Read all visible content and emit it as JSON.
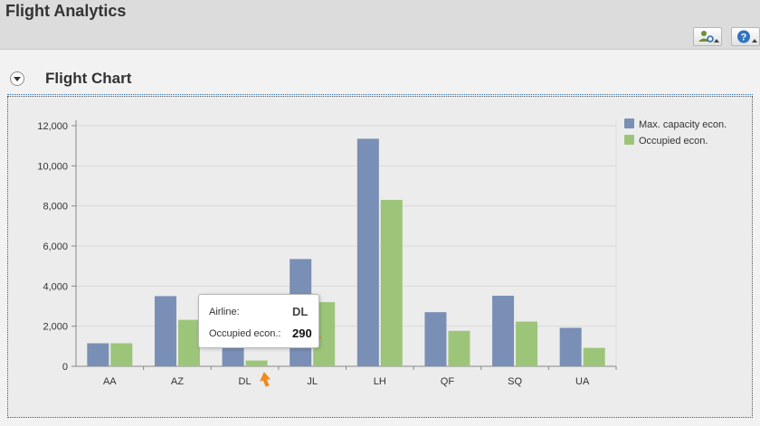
{
  "app": {
    "title": "Flight Analytics"
  },
  "toolbar": {
    "buttons": [
      {
        "icon": "user-settings-icon"
      },
      {
        "icon": "help-icon",
        "glyph": "?"
      }
    ]
  },
  "panel": {
    "title": "Flight Chart"
  },
  "colors": {
    "max_capacity": "#7a8fb5",
    "occupied": "#9dc57a",
    "axis": "#888888",
    "grid": "#d9d9d9"
  },
  "chart_data": {
    "type": "bar",
    "categories": [
      "AA",
      "AZ",
      "DL",
      "JL",
      "LH",
      "QF",
      "SQ",
      "UA"
    ],
    "series": [
      {
        "name": "Max. capacity econ.",
        "values": [
          1150,
          3500,
          1300,
          5350,
          11350,
          2700,
          3520,
          1920
        ]
      },
      {
        "name": "Occupied econ.",
        "values": [
          1150,
          2320,
          290,
          3200,
          8300,
          1770,
          2230,
          920
        ]
      }
    ],
    "ylim": [
      0,
      12000
    ],
    "yticks": [
      "0",
      "2,000",
      "4,000",
      "6,000",
      "8,000",
      "10,000",
      "12,000"
    ],
    "grid": true,
    "legend_position": "top-right"
  },
  "tooltip": {
    "airline_label": "Airline:",
    "airline_value": "DL",
    "occupied_label": "Occupied econ.:",
    "occupied_value": "290"
  }
}
